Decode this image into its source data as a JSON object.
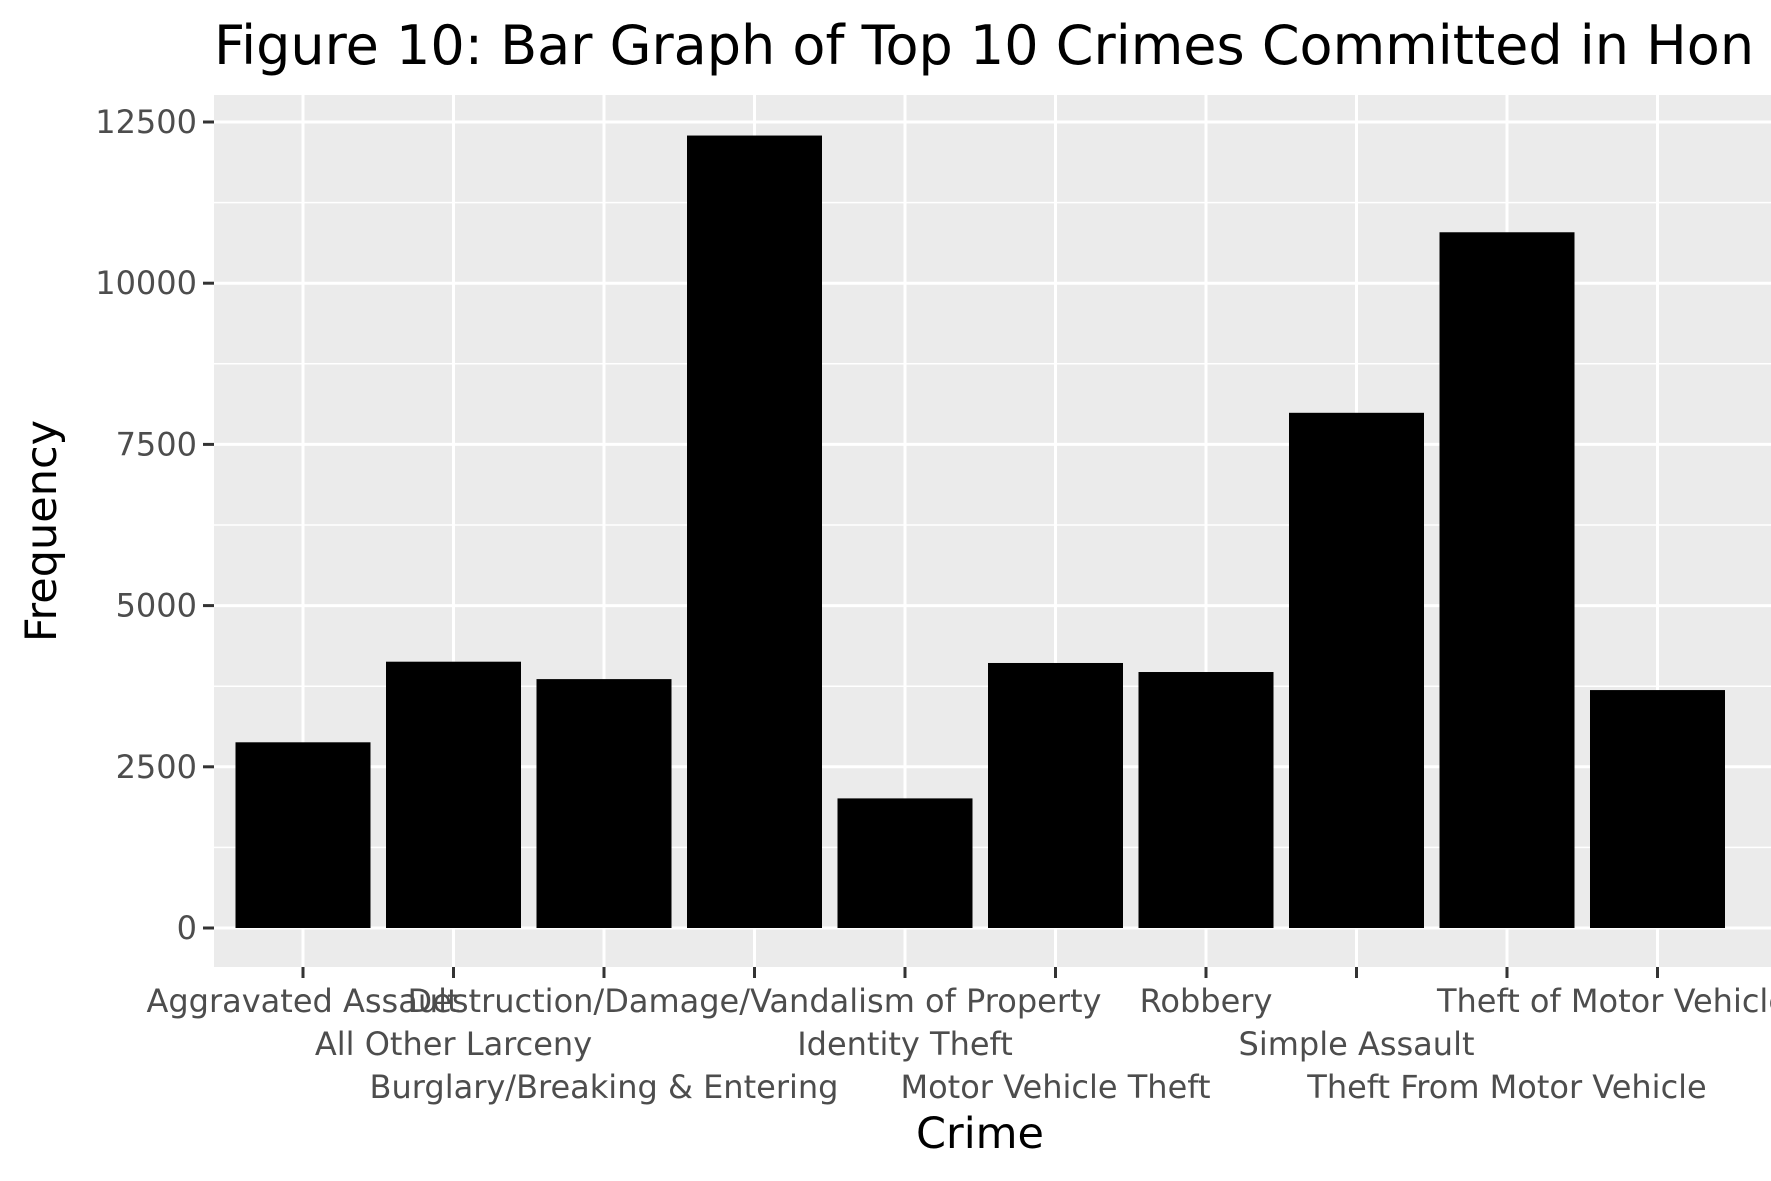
{
  "chart_data": {
    "type": "bar",
    "title": "Figure 10: Bar Graph of Top 10 Crimes Committed in Hon",
    "xlabel": "Crime",
    "ylabel": "Frequency",
    "categories": [
      "Aggravated Assault",
      "All Other Larceny",
      "Burglary/Breaking & Entering",
      "Destruction/Damage/Vandalism of Property",
      "Identity Theft",
      "Motor Vehicle Theft",
      "Robbery",
      "Simple Assault",
      "Theft From Motor Vehicle",
      "Theft of Motor Vehicle Parts"
    ],
    "values": [
      2880,
      4130,
      3860,
      12290,
      2010,
      4110,
      3970,
      7990,
      10790,
      3690
    ],
    "ylim": [
      -600,
      13000
    ],
    "yticks": [
      0,
      2500,
      5000,
      7500,
      10000,
      12500
    ],
    "ytick_labels": [
      "0",
      "2500",
      "5000",
      "7500",
      "10000",
      "12500"
    ],
    "grid": true,
    "colors": {
      "bar": "#000000",
      "panel_background": "#ebebeb",
      "grid": "#ffffff",
      "tick_text": "#4d4d4d",
      "tick_mark": "#333333"
    }
  }
}
